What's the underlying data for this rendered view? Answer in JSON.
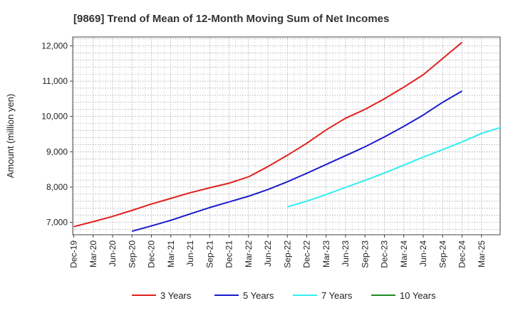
{
  "chart_data": {
    "type": "line",
    "title": "[9869]  Trend of Mean of 12-Month Moving Sum of Net Incomes",
    "xlabel": "",
    "ylabel": "Amount (million yen)",
    "ylim": [
      6650,
      12250
    ],
    "yticks": [
      7000,
      8000,
      9000,
      10000,
      11000,
      12000
    ],
    "ytick_labels": [
      "7,000",
      "8,000",
      "9,000",
      "10,000",
      "11,000",
      "12,000"
    ],
    "x_tick_labels": [
      "Dec-19",
      "Mar-20",
      "Jun-20",
      "Sep-20",
      "Dec-20",
      "Mar-21",
      "Jun-21",
      "Sep-21",
      "Dec-21",
      "Mar-22",
      "Jun-22",
      "Sep-22",
      "Dec-22",
      "Mar-23",
      "Jun-23",
      "Sep-23",
      "Dec-23",
      "Mar-24",
      "Jun-24",
      "Sep-24",
      "Dec-24",
      "Mar-25"
    ],
    "grid": true,
    "legend_position": "bottom",
    "series": [
      {
        "name": "3 Years",
        "color": "#e02020",
        "start_index": 0,
        "values": [
          6880,
          7020,
          7170,
          7340,
          7520,
          7680,
          7840,
          7980,
          8110,
          8290,
          8580,
          8900,
          9240,
          9620,
          9950,
          10200,
          10500,
          10830,
          11180,
          11640,
          12100
        ]
      },
      {
        "name": "5 Years",
        "color": "#1a1acc",
        "start_index": 3,
        "values": [
          6750,
          6900,
          7060,
          7240,
          7420,
          7580,
          7740,
          7930,
          8150,
          8390,
          8640,
          8890,
          9140,
          9420,
          9720,
          10040,
          10400,
          10720
        ]
      },
      {
        "name": "7 Years",
        "color": "#33eeee",
        "start_index": 11,
        "values": [
          7440,
          7600,
          7790,
          7990,
          8190,
          8400,
          8620,
          8850,
          9060,
          9280,
          9520,
          9690
        ]
      },
      {
        "name": "10 Years",
        "color": "#228B22",
        "start_index": 0,
        "values": []
      }
    ]
  }
}
